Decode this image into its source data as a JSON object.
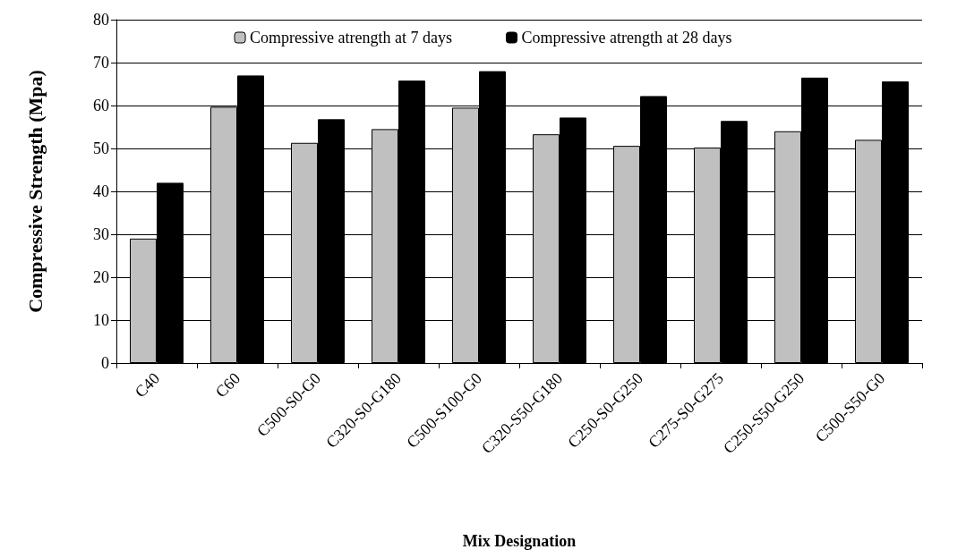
{
  "chart_data": {
    "type": "bar",
    "xlabel": "Mix Designation",
    "ylabel": "Compressive Strength (Mpa)",
    "categories": [
      "C40",
      "C60",
      "C500-S0-G0",
      "C320-S0-G180",
      "C500-S100-G0",
      "C320-S50-G180",
      "C250-S0-G250",
      "C275-S0-G275",
      "C250-S50-G250",
      "C500-S50-G0"
    ],
    "series": [
      {
        "name": "Compressive atrength at 7 days",
        "color": "#c0c0c0",
        "values": [
          29,
          59.7,
          51.3,
          54.5,
          59.5,
          53.3,
          50.6,
          50.2,
          54,
          52
        ]
      },
      {
        "name": "Compressive atrength at 28 days",
        "color": "#000000",
        "values": [
          42,
          67,
          56.8,
          65.8,
          68,
          57.2,
          62.2,
          56.4,
          66.5,
          65.6
        ]
      }
    ],
    "ylim": [
      0,
      80
    ],
    "yticks": [
      0,
      10,
      20,
      30,
      40,
      50,
      60,
      70,
      80
    ],
    "grid": "y",
    "legend": "top"
  }
}
